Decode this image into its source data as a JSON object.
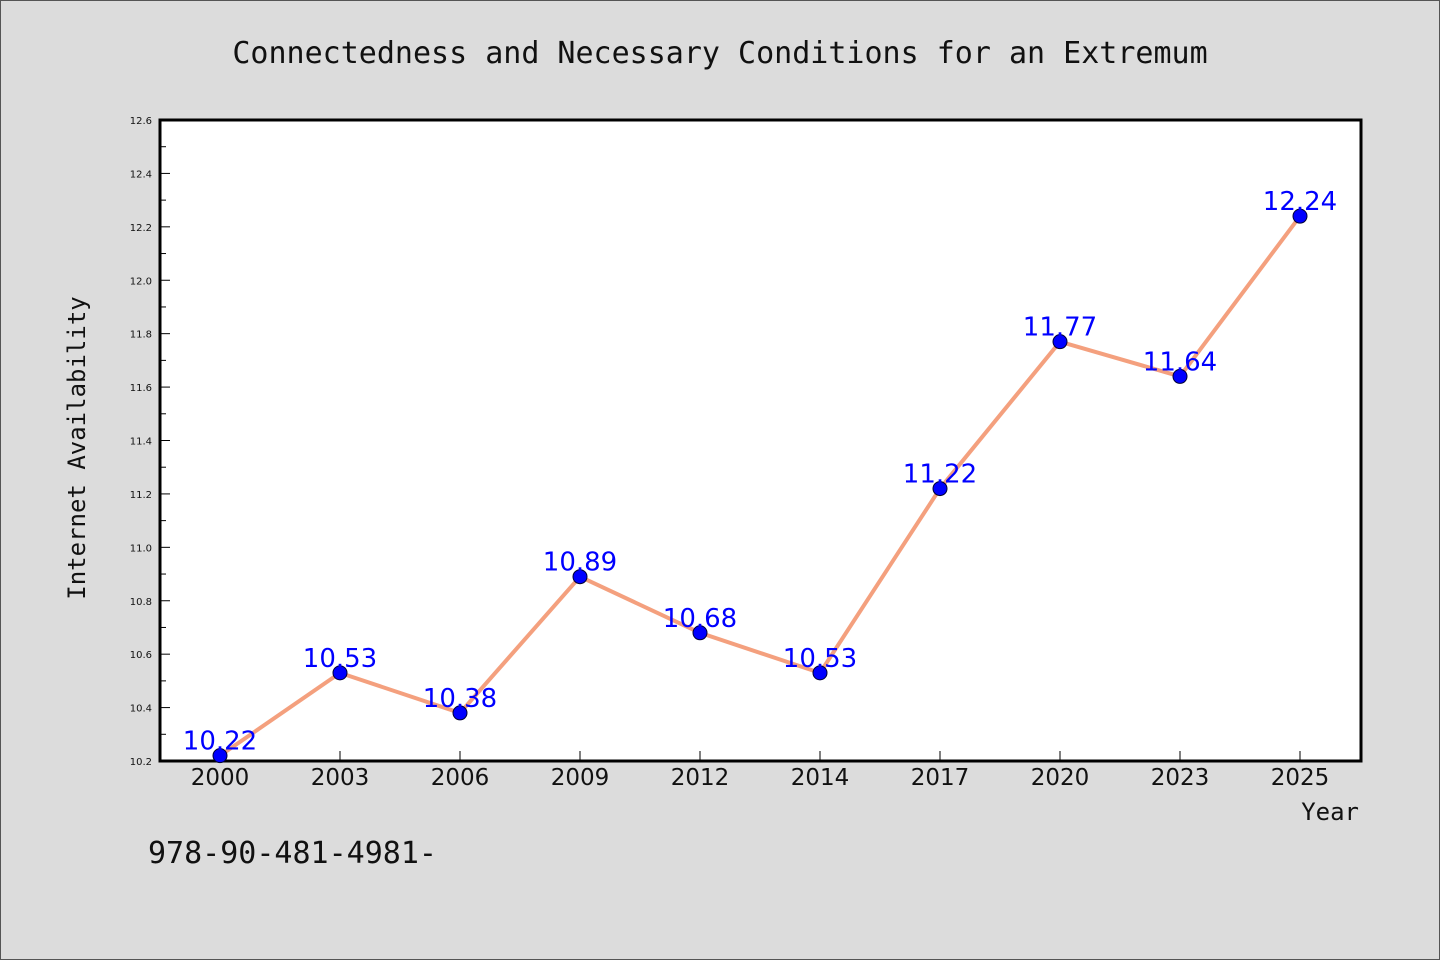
{
  "chart_data": {
    "type": "line",
    "title": "Connectedness and Necessary Conditions for an Extremum",
    "xlabel": "Year",
    "ylabel": "Internet Availability",
    "categories": [
      "2000",
      "2003",
      "2006",
      "2009",
      "2012",
      "2014",
      "2017",
      "2020",
      "2023",
      "2025"
    ],
    "series": [
      {
        "values": [
          10.22,
          10.53,
          10.38,
          10.89,
          10.68,
          10.53,
          11.22,
          11.77,
          11.64,
          12.24
        ],
        "data_labels": [
          "10.22",
          "10.53",
          "10.38",
          "10.89",
          "10.68",
          "10.53",
          "11.22",
          "11.77",
          "11.64",
          "12.24"
        ]
      }
    ],
    "ylim": [
      10.2,
      12.6
    ],
    "yticks": [
      "10.2",
      "10.4",
      "10.6",
      "10.8",
      "11.0",
      "11.2",
      "11.4",
      "11.6",
      "11.8",
      "12.0",
      "12.2",
      "12.4",
      "12.6"
    ],
    "grid": false,
    "legend": "none",
    "colors": {
      "line": "#f4a07e",
      "marker": "#0000ff",
      "data_label": "#0000ff",
      "background": "#dcdcdc",
      "plot_background": "#ffffff"
    }
  },
  "footer": {
    "text": "978-90-481-4981-"
  }
}
